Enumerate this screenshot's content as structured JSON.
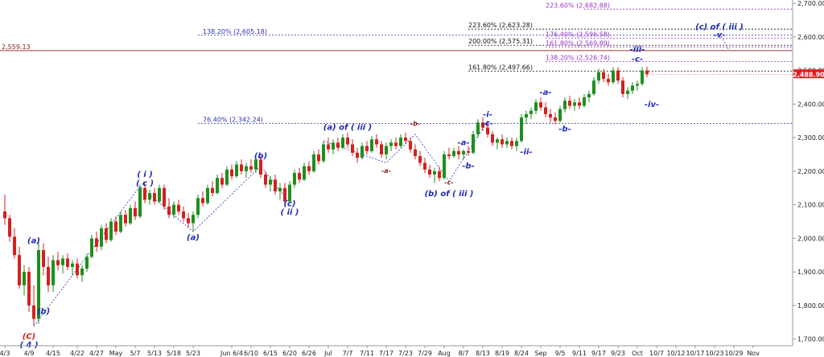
{
  "chart_data": {
    "type": "candlestick",
    "title": "",
    "ylim": [
      1680,
      2710
    ],
    "y_ticks": [
      "1,700.00",
      "1,800.00",
      "1,900.00",
      "2,000.00",
      "2,100.00",
      "2,200.00",
      "2,300.00",
      "2,400.00",
      "2,500.00",
      "2,600.00",
      "2,700.00"
    ],
    "y_tick_values": [
      1700,
      1800,
      1900,
      2000,
      2100,
      2200,
      2300,
      2400,
      2500,
      2600,
      2700
    ],
    "x_ticks": [
      "4/3",
      "4/9",
      "4/15",
      "4/22",
      "4/27",
      "May",
      "5/7",
      "5/13",
      "5/18",
      "5/23",
      "Jun 6/4",
      "6/10",
      "6/15",
      "6/20",
      "6/26",
      "Jul",
      "7/7",
      "7/11",
      "7/17",
      "7/23",
      "7/29",
      "Aug",
      "8/7",
      "8/13",
      "8/19",
      "8/24",
      "Sep",
      "9/5",
      "9/11",
      "9/17",
      "9/23",
      "Oct",
      "10/7",
      "10/12",
      "10/17",
      "10/23",
      "10/29",
      "Nov"
    ],
    "x_tick_index": [
      0,
      5,
      10,
      15,
      19,
      23,
      27,
      31,
      35,
      39,
      47,
      51,
      55,
      59,
      63,
      67,
      71,
      75,
      79,
      83,
      87,
      91,
      95,
      99,
      103,
      107,
      111,
      115,
      119,
      123,
      127,
      131,
      135,
      139,
      143,
      147,
      151,
      155
    ],
    "index_count": 160,
    "last_price": "2,488.90",
    "last_price_value": 2488.9,
    "colors": {
      "up": "#1e8f1e",
      "down": "#d42020",
      "wave": "#1f2bb5",
      "fib_blue": "#2d2fb8",
      "fib_purple": "#9932cc",
      "fib_black": "#111111",
      "price_tag": "#e21c1c",
      "target_line": "#8b1a1a"
    },
    "fib_levels": [
      {
        "label": "223.60% (2,682.88)",
        "value": 2682.88,
        "color": "#9932cc",
        "start_index": 120,
        "label_index": 112
      },
      {
        "label": "223.60% (2,623.28)",
        "value": 2623.28,
        "color": "#111111",
        "start_index": 96,
        "label_index": 96
      },
      {
        "label": "138.20% (2,605.18)",
        "value": 2605.18,
        "color": "#2d2fb8",
        "start_index": 40,
        "label_index": 41
      },
      {
        "label": "176.40% (2,596.58)",
        "value": 2596.58,
        "color": "#9932cc",
        "start_index": 112,
        "label_index": 112
      },
      {
        "label": "200.00% (2,575.31)",
        "value": 2575.31,
        "color": "#111111",
        "start_index": 96,
        "label_index": 96
      },
      {
        "label": "161.80% (2,569.89)",
        "value": 2569.89,
        "color": "#9932cc",
        "start_index": 112,
        "label_index": 112
      },
      {
        "label": "138.20% (2,526.74)",
        "value": 2526.74,
        "color": "#9932cc",
        "start_index": 112,
        "label_index": 112
      },
      {
        "label": "161.80% (2,497.66)",
        "value": 2497.66,
        "color": "#111111",
        "start_index": 96,
        "label_index": 96
      },
      {
        "label": "76.40% (2,342.24)",
        "value": 2342.24,
        "color": "#2d2fb8",
        "start_index": 40,
        "label_index": 41
      }
    ],
    "target_line": {
      "label": "2,559.13",
      "value": 2559.13
    },
    "wave_labels": [
      {
        "text": "(a)",
        "index": 6,
        "price": 1985,
        "color": "#1f2bb5"
      },
      {
        "text": "(b)",
        "index": 8,
        "price": 1775,
        "color": "#1f2bb5"
      },
      {
        "text": "(C)",
        "index": 5,
        "price": 1700,
        "color": "#d42020"
      },
      {
        "text": "( 4 )",
        "index": 5,
        "price": 1675,
        "color": "#1f2bb5"
      },
      {
        "text": "( i )",
        "index": 29,
        "price": 2183,
        "color": "#1f2bb5"
      },
      {
        "text": "( c )",
        "index": 29,
        "price": 2157,
        "color": "#1f2bb5"
      },
      {
        "text": "(a)",
        "index": 39,
        "price": 1995,
        "color": "#1f2bb5"
      },
      {
        "text": "(b)",
        "index": 53,
        "price": 2238,
        "color": "#1f2bb5"
      },
      {
        "text": "(c)",
        "index": 59,
        "price": 2095,
        "color": "#1f2bb5"
      },
      {
        "text": "( ii )",
        "index": 59,
        "price": 2070,
        "color": "#1f2bb5"
      },
      {
        "text": "(a) of ( iii )",
        "index": 71,
        "price": 2323,
        "color": "#1f2bb5"
      },
      {
        "text": "-a-",
        "index": 79,
        "price": 2195,
        "color": "#8b1a1a"
      },
      {
        "text": "-b-",
        "index": 85,
        "price": 2335,
        "color": "#8b1a1a"
      },
      {
        "text": "-c-",
        "index": 92,
        "price": 2160,
        "color": "#8b1a1a"
      },
      {
        "text": "(b) of ( iii )",
        "index": 92,
        "price": 2125,
        "color": "#1f2bb5"
      },
      {
        "text": "-a-",
        "index": 95,
        "price": 2278,
        "color": "#1f2bb5"
      },
      {
        "text": "-b-",
        "index": 96,
        "price": 2208,
        "color": "#1f2bb5"
      },
      {
        "text": "-i-",
        "index": 100,
        "price": 2362,
        "color": "#1f2bb5"
      },
      {
        "text": "-c-",
        "index": 100,
        "price": 2335,
        "color": "#1f2bb5"
      },
      {
        "text": "-ii-",
        "index": 108,
        "price": 2250,
        "color": "#1f2bb5"
      },
      {
        "text": "-a-",
        "index": 112,
        "price": 2427,
        "color": "#1f2bb5"
      },
      {
        "text": "-b-",
        "index": 116,
        "price": 2318,
        "color": "#1f2bb5"
      },
      {
        "text": "-iii-",
        "index": 131,
        "price": 2555,
        "color": "#1f2bb5"
      },
      {
        "text": "-c-",
        "index": 131,
        "price": 2527,
        "color": "#1f2bb5"
      },
      {
        "text": "-iv-",
        "index": 134,
        "price": 2392,
        "color": "#1f2bb5"
      },
      {
        "text": "(c) of ( iii )",
        "index": 148,
        "price": 2623,
        "color": "#1f2bb5"
      },
      {
        "text": "-v-",
        "index": 148,
        "price": 2599,
        "color": "#1f2bb5"
      }
    ],
    "wave_paths": [
      [
        [
          6,
          1738
        ],
        [
          28,
          2155
        ],
        [
          39,
          2020
        ],
        [
          53,
          2215
        ],
        [
          59,
          2105
        ]
      ],
      [
        [
          66,
          2290
        ],
        [
          79,
          2225
        ],
        [
          85,
          2310
        ],
        [
          92,
          2170
        ],
        [
          100,
          2350
        ]
      ],
      [
        [
          148,
          2610
        ],
        [
          150,
          2560
        ]
      ]
    ],
    "candles": [
      [
        2080,
        2130,
        2040,
        2060
      ],
      [
        2060,
        2070,
        1990,
        2005
      ],
      [
        2005,
        2030,
        1940,
        1950
      ],
      [
        1950,
        1975,
        1850,
        1860
      ],
      [
        1860,
        1920,
        1830,
        1900
      ],
      [
        1900,
        1915,
        1780,
        1800
      ],
      [
        1800,
        1860,
        1740,
        1760
      ],
      [
        1760,
        1990,
        1745,
        1965
      ],
      [
        1965,
        1985,
        1890,
        1915
      ],
      [
        1915,
        1945,
        1840,
        1860
      ],
      [
        1860,
        1950,
        1840,
        1935
      ],
      [
        1935,
        1960,
        1905,
        1920
      ],
      [
        1920,
        1950,
        1895,
        1940
      ],
      [
        1940,
        1955,
        1905,
        1915
      ],
      [
        1915,
        1935,
        1890,
        1925
      ],
      [
        1925,
        1940,
        1880,
        1890
      ],
      [
        1890,
        1920,
        1870,
        1910
      ],
      [
        1910,
        1955,
        1900,
        1945
      ],
      [
        1945,
        2010,
        1940,
        2000
      ],
      [
        2000,
        2020,
        1960,
        1975
      ],
      [
        1975,
        2040,
        1965,
        2030
      ],
      [
        2030,
        2045,
        1985,
        1995
      ],
      [
        1995,
        2060,
        1990,
        2050
      ],
      [
        2050,
        2065,
        2010,
        2020
      ],
      [
        2020,
        2080,
        2015,
        2070
      ],
      [
        2070,
        2085,
        2035,
        2045
      ],
      [
        2045,
        2100,
        2040,
        2090
      ],
      [
        2090,
        2110,
        2055,
        2065
      ],
      [
        2065,
        2160,
        2060,
        2150
      ],
      [
        2150,
        2165,
        2105,
        2115
      ],
      [
        2115,
        2145,
        2100,
        2135
      ],
      [
        2135,
        2150,
        2100,
        2110
      ],
      [
        2110,
        2160,
        2105,
        2150
      ],
      [
        2150,
        2160,
        2085,
        2095
      ],
      [
        2095,
        2120,
        2060,
        2070
      ],
      [
        2070,
        2110,
        2060,
        2100
      ],
      [
        2100,
        2115,
        2070,
        2080
      ],
      [
        2080,
        2095,
        2050,
        2060
      ],
      [
        2060,
        2075,
        2030,
        2045
      ],
      [
        2045,
        2080,
        2020,
        2070
      ],
      [
        2070,
        2130,
        2060,
        2120
      ],
      [
        2120,
        2140,
        2095,
        2105
      ],
      [
        2105,
        2160,
        2100,
        2150
      ],
      [
        2150,
        2170,
        2125,
        2135
      ],
      [
        2135,
        2190,
        2130,
        2180
      ],
      [
        2180,
        2195,
        2150,
        2160
      ],
      [
        2160,
        2215,
        2155,
        2205
      ],
      [
        2205,
        2220,
        2175,
        2185
      ],
      [
        2185,
        2230,
        2180,
        2220
      ],
      [
        2220,
        2235,
        2190,
        2200
      ],
      [
        2200,
        2225,
        2180,
        2215
      ],
      [
        2215,
        2235,
        2195,
        2205
      ],
      [
        2205,
        2245,
        2195,
        2235
      ],
      [
        2235,
        2245,
        2180,
        2190
      ],
      [
        2190,
        2200,
        2150,
        2160
      ],
      [
        2160,
        2185,
        2140,
        2175
      ],
      [
        2175,
        2190,
        2130,
        2140
      ],
      [
        2140,
        2165,
        2115,
        2150
      ],
      [
        2150,
        2165,
        2100,
        2110
      ],
      [
        2110,
        2170,
        2105,
        2160
      ],
      [
        2160,
        2205,
        2150,
        2195
      ],
      [
        2195,
        2210,
        2165,
        2175
      ],
      [
        2175,
        2225,
        2170,
        2215
      ],
      [
        2215,
        2230,
        2190,
        2200
      ],
      [
        2200,
        2260,
        2195,
        2250
      ],
      [
        2250,
        2265,
        2220,
        2230
      ],
      [
        2230,
        2290,
        2225,
        2280
      ],
      [
        2280,
        2300,
        2255,
        2265
      ],
      [
        2265,
        2295,
        2250,
        2285
      ],
      [
        2285,
        2300,
        2260,
        2270
      ],
      [
        2270,
        2310,
        2265,
        2300
      ],
      [
        2300,
        2315,
        2270,
        2280
      ],
      [
        2280,
        2295,
        2245,
        2255
      ],
      [
        2255,
        2270,
        2225,
        2240
      ],
      [
        2240,
        2285,
        2235,
        2275
      ],
      [
        2275,
        2290,
        2250,
        2260
      ],
      [
        2260,
        2305,
        2255,
        2295
      ],
      [
        2295,
        2310,
        2270,
        2280
      ],
      [
        2280,
        2290,
        2240,
        2250
      ],
      [
        2250,
        2285,
        2235,
        2275
      ],
      [
        2275,
        2295,
        2260,
        2285
      ],
      [
        2285,
        2300,
        2265,
        2275
      ],
      [
        2275,
        2310,
        2270,
        2300
      ],
      [
        2300,
        2315,
        2280,
        2290
      ],
      [
        2290,
        2300,
        2255,
        2265
      ],
      [
        2265,
        2280,
        2235,
        2245
      ],
      [
        2245,
        2260,
        2215,
        2225
      ],
      [
        2225,
        2240,
        2195,
        2205
      ],
      [
        2205,
        2220,
        2180,
        2190
      ],
      [
        2190,
        2210,
        2165,
        2200
      ],
      [
        2200,
        2215,
        2170,
        2180
      ],
      [
        2180,
        2260,
        2175,
        2250
      ],
      [
        2250,
        2270,
        2235,
        2245
      ],
      [
        2245,
        2270,
        2240,
        2260
      ],
      [
        2260,
        2275,
        2235,
        2250
      ],
      [
        2250,
        2265,
        2235,
        2260
      ],
      [
        2260,
        2275,
        2245,
        2255
      ],
      [
        2255,
        2320,
        2250,
        2310
      ],
      [
        2310,
        2355,
        2300,
        2345
      ],
      [
        2345,
        2360,
        2320,
        2330
      ],
      [
        2330,
        2345,
        2300,
        2310
      ],
      [
        2310,
        2320,
        2275,
        2285
      ],
      [
        2285,
        2300,
        2265,
        2295
      ],
      [
        2295,
        2310,
        2270,
        2280
      ],
      [
        2280,
        2300,
        2270,
        2290
      ],
      [
        2290,
        2300,
        2265,
        2275
      ],
      [
        2275,
        2300,
        2260,
        2290
      ],
      [
        2290,
        2370,
        2285,
        2360
      ],
      [
        2360,
        2380,
        2340,
        2370
      ],
      [
        2370,
        2390,
        2355,
        2380
      ],
      [
        2380,
        2415,
        2370,
        2405
      ],
      [
        2405,
        2420,
        2380,
        2390
      ],
      [
        2390,
        2405,
        2360,
        2370
      ],
      [
        2370,
        2385,
        2345,
        2360
      ],
      [
        2360,
        2375,
        2340,
        2350
      ],
      [
        2350,
        2395,
        2345,
        2385
      ],
      [
        2385,
        2420,
        2375,
        2410
      ],
      [
        2410,
        2425,
        2385,
        2395
      ],
      [
        2395,
        2415,
        2380,
        2405
      ],
      [
        2405,
        2420,
        2385,
        2395
      ],
      [
        2395,
        2430,
        2390,
        2420
      ],
      [
        2420,
        2440,
        2405,
        2430
      ],
      [
        2430,
        2480,
        2425,
        2470
      ],
      [
        2470,
        2505,
        2460,
        2495
      ],
      [
        2495,
        2505,
        2465,
        2475
      ],
      [
        2475,
        2490,
        2455,
        2465
      ],
      [
        2465,
        2510,
        2460,
        2500
      ],
      [
        2500,
        2510,
        2460,
        2470
      ],
      [
        2470,
        2480,
        2420,
        2430
      ],
      [
        2430,
        2450,
        2415,
        2440
      ],
      [
        2440,
        2465,
        2430,
        2455
      ],
      [
        2455,
        2470,
        2440,
        2460
      ],
      [
        2460,
        2510,
        2455,
        2500
      ],
      [
        2500,
        2512,
        2480,
        2489
      ]
    ]
  }
}
